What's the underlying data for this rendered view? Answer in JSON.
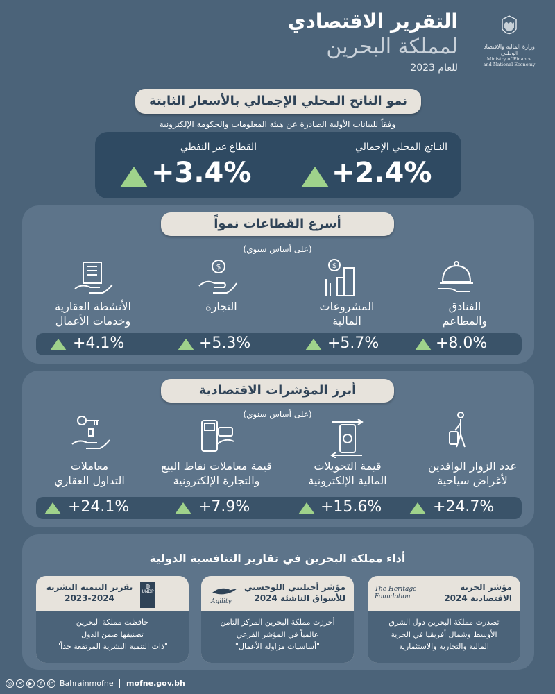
{
  "header": {
    "title": "التقرير الاقتصادي",
    "subtitle": "لمملكة البحرين",
    "year": "للعام 2023",
    "logo_ar": "وزارة المالية والاقتصاد الوطني",
    "logo_en_line1": "Ministry of Finance",
    "logo_en_line2": "and National Economy"
  },
  "gdp": {
    "heading": "نمو الناتج المحلي الإجمالي بالأسعار الثابتة",
    "note": "وفقاً للبيانات الأولية الصادرة عن هيئة المعلومات والحكومة الإلكترونية",
    "items": [
      {
        "label": "النـاتج المحلي الإجمالي",
        "value": "+2.4%"
      },
      {
        "label": "القطاع غير النفطي",
        "value": "+3.4%"
      }
    ]
  },
  "sectors": {
    "heading": "أسرع القطاعات نمواً",
    "note": "(على أساس سنوي)",
    "items": [
      {
        "line1": "الفنادق",
        "line2": "والمطاعم",
        "value": "+8.0%",
        "icon": "cloche-icon"
      },
      {
        "line1": "المشروعات",
        "line2": "المالية",
        "value": "+5.7%",
        "icon": "finance-buildings-icon"
      },
      {
        "line1": "التجارة",
        "line2": "",
        "value": "+5.3%",
        "icon": "coin-hand-icon"
      },
      {
        "line1": "الأنشطة العقارية",
        "line2": "وخدمات الأعمال",
        "value": "+4.1%",
        "icon": "real-estate-icon"
      }
    ]
  },
  "indicators": {
    "heading": "أبرز المؤشرات الاقتصادية",
    "note": "(على أساس سنوي)",
    "items": [
      {
        "line1": "عدد الزوار الوافدين",
        "line2": "لأغراض سياحية",
        "value": "+24.7%",
        "icon": "traveler-icon"
      },
      {
        "line1": "قيمة التحويلات",
        "line2": "المالية الإلكترونية",
        "value": "+15.6%",
        "icon": "mobile-transfer-icon"
      },
      {
        "line1": "قيمة معاملات نقاط البيع",
        "line2": "والتجارة الإلكترونية",
        "value": "+7.9%",
        "icon": "pos-terminal-icon"
      },
      {
        "line1": "معاملات",
        "line2": "التداول العقاري",
        "value": "+24.1%",
        "icon": "key-hand-icon"
      }
    ]
  },
  "competitiveness": {
    "title": "أداء مملكة البحرين في تقارير التنافسية الدولية",
    "cards": [
      {
        "logo": "The Heritage Foundation",
        "head1": "مؤشر الحرية",
        "head2": "الاقتصادية 2024",
        "b1": "تصدرت مملكة البحرين دول الشرق",
        "b2": "الأوسط وشمال أفريقيا في الحرية",
        "b3": "المالية والتجارية والاستثمارية"
      },
      {
        "logo": "Agility",
        "head1": "مؤشر أجيليتي اللوجستي",
        "head2": "للأسواق الناشئة 2024",
        "b1": "أحرزت مملكة البحرين المركز الثامن",
        "b2": "عالمياً في المؤشر الفرعي",
        "b3": "\"أساسيات مزاولة الأعمال\""
      },
      {
        "logo": "UNDP",
        "head1": "تقرير التنمية البشرية",
        "head2": "2023-2024",
        "b1": "حافظت مملكة البحرين",
        "b2": "تصنيفها ضمن الدول",
        "b3": "\"ذات التنمية البشرية المرتفعة جداً\""
      }
    ]
  },
  "footer": {
    "handle": "Bahrainmofne",
    "website": "mofne.gov.bh"
  },
  "colors": {
    "background": "#4b6379",
    "panel": "#5d748a",
    "card_dark": "#2f4a62",
    "pill": "#e7e3dc",
    "accent_up": "#9fd28b"
  }
}
